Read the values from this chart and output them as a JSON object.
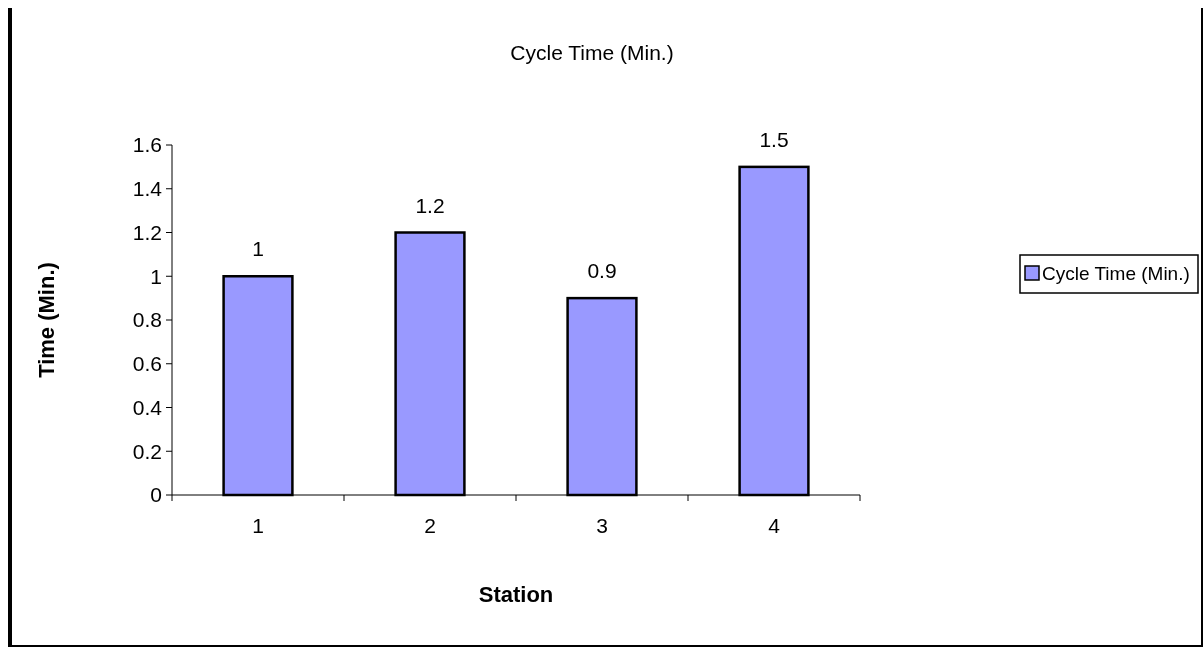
{
  "chart_data": {
    "type": "bar",
    "title": "Cycle Time (Min.)",
    "xlabel": "Station",
    "ylabel": "Time (Min.)",
    "categories": [
      "1",
      "2",
      "3",
      "4"
    ],
    "series": [
      {
        "name": "Cycle Time (Min.)",
        "color": "#9999ff",
        "values": [
          1,
          1.2,
          0.9,
          1.5
        ]
      }
    ],
    "ylim": [
      0,
      1.6
    ],
    "yticks": [
      0,
      0.2,
      0.4,
      0.6,
      0.8,
      1,
      1.2,
      1.4,
      1.6
    ],
    "data_labels": true,
    "grid": false,
    "legend": "right"
  }
}
